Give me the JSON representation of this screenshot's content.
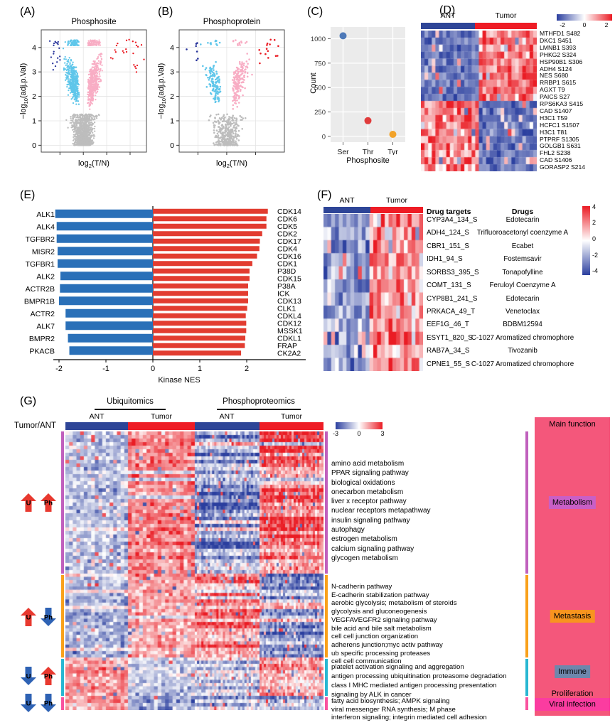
{
  "chart_data": [
    {
      "panel": "A",
      "label": "(A)",
      "type": "scatter",
      "variant": "volcano",
      "title": "Phosphosite",
      "xlabel": {
        "pre": "log",
        "sub": "2",
        "post": "(T/N)"
      },
      "ylabel": {
        "pre": "−log",
        "sub": "10",
        "post": "(adj.p.Val)"
      },
      "x_ticks": [
        -2,
        0,
        2,
        4
      ],
      "y_ticks": [
        0,
        1,
        2,
        3,
        4
      ],
      "xlim": [
        -3.6,
        5.4
      ],
      "ylim": [
        -0.28,
        4.72
      ],
      "sig_threshold_y": 1.3,
      "strong_x": 1.95,
      "n_points": 2300,
      "seed": 7,
      "top_band": 0.17,
      "r": 1.15,
      "colors": {
        "ns": "#bdbdbd",
        "down": "#5fc6ea",
        "up": "#f8adc4",
        "strong_down": "#28349b",
        "strong_up": "#ea1c24"
      }
    },
    {
      "panel": "B",
      "label": "(B)",
      "type": "scatter",
      "variant": "volcano",
      "title": "Phosphoprotein",
      "xlabel": {
        "pre": "log",
        "sub": "2",
        "post": "(T/N)"
      },
      "ylabel": {
        "pre": "−log",
        "sub": "10",
        "post": "(adj.p.Val)"
      },
      "x_ticks": [
        -2,
        0,
        2
      ],
      "y_ticks": [
        0,
        1,
        2,
        3,
        4
      ],
      "xlim": [
        -3.3,
        4.0
      ],
      "ylim": [
        -0.28,
        4.72
      ],
      "sig_threshold_y": 1.3,
      "strong_x": 1.95,
      "n_points": 700,
      "seed": 13,
      "top_band": 0.07,
      "r": 1.3,
      "colors": {
        "ns": "#bdbdbd",
        "down": "#5fc6ea",
        "up": "#f8adc4",
        "strong_down": "#28349b",
        "strong_up": "#ea1c24"
      }
    },
    {
      "panel": "C",
      "label": "(C)",
      "type": "scatter",
      "categories": [
        "Ser",
        "Thr",
        "Tyr"
      ],
      "values": [
        1030,
        160,
        20
      ],
      "point_colors": [
        "#4e79b8",
        "#e03b3b",
        "#f2a32a"
      ],
      "xlabel": "Phosphosite",
      "ylabel": "Count",
      "y_ticks": [
        0,
        250,
        500,
        750,
        1000
      ],
      "ylim": [
        -60,
        1120
      ],
      "panel_bg": "#ebebeb"
    },
    {
      "panel": "D",
      "label": "(D)",
      "type": "heatmap",
      "col_groups": [
        {
          "label": "ANT",
          "color": "#2e4597"
        },
        {
          "label": "Tumor",
          "color": "#ee1c25"
        }
      ],
      "rows": 20,
      "cols": 32,
      "ant_cols": 16,
      "seed": 21,
      "row_labels": [
        "MTHFD1 S482",
        "DKC1 S451",
        "LMNB1 S393",
        "PHKG2 S324",
        "HSP90B1 S306",
        "ADH4 S124",
        "NES S680",
        "RRBP1 S615",
        "AGXT T9",
        "PAICS S27",
        "RPS6KA3 S415",
        "CAD S1407",
        "H3C1 T59",
        "HCFC1 S1507",
        "H3C1 T81",
        "PTPRF S1305",
        "GOLGB1 S631",
        "FHL2 S238",
        "CAD S1406",
        "GORASP2 S214"
      ],
      "colorbar_ticks": [
        -2,
        0,
        2
      ],
      "cmap": {
        "low": "#2b3f9f",
        "mid": "#ffffff",
        "high": "#ea1c24"
      }
    },
    {
      "panel": "E",
      "label": "(E)",
      "type": "bar",
      "variant": "horizontal-diverging",
      "xlabel": "Kinase NES",
      "x_ticks": [
        -2,
        -1,
        0,
        1,
        2
      ],
      "left_color": "#2a70b8",
      "right_color": "#e23c30",
      "left": [
        {
          "name": "ALK1",
          "value": -2.08
        },
        {
          "name": "ALK4",
          "value": -2.05
        },
        {
          "name": "TGFBR2",
          "value": -2.05
        },
        {
          "name": "MISR2",
          "value": -2.03
        },
        {
          "name": "TGFBR1",
          "value": -2.03
        },
        {
          "name": "ALK2",
          "value": -1.97
        },
        {
          "name": "ACTR2B",
          "value": -1.98
        },
        {
          "name": "BMPR1B",
          "value": -2.0
        },
        {
          "name": "ACTR2",
          "value": -1.86
        },
        {
          "name": "ALK7",
          "value": -1.86
        },
        {
          "name": "BMPR2",
          "value": -1.81
        },
        {
          "name": "PKACB",
          "value": -1.78
        }
      ],
      "right": [
        {
          "name": "CDK14",
          "value": 2.45
        },
        {
          "name": "CDK6",
          "value": 2.42
        },
        {
          "name": "CDK5",
          "value": 2.42
        },
        {
          "name": "CDK2",
          "value": 2.33
        },
        {
          "name": "CDK17",
          "value": 2.28
        },
        {
          "name": "CDK4",
          "value": 2.27
        },
        {
          "name": "CDK16",
          "value": 2.22
        },
        {
          "name": "CDK1",
          "value": 2.12
        },
        {
          "name": "P38D",
          "value": 2.06
        },
        {
          "name": "CDK15",
          "value": 2.06
        },
        {
          "name": "P38A",
          "value": 2.03
        },
        {
          "name": "ICK",
          "value": 2.03
        },
        {
          "name": "CDK13",
          "value": 2.03
        },
        {
          "name": "CLK1",
          "value": 2.01
        },
        {
          "name": "CDKL4",
          "value": 1.98
        },
        {
          "name": "CDK12",
          "value": 1.99
        },
        {
          "name": "MSSK1",
          "value": 1.99
        },
        {
          "name": "CDKL1",
          "value": 1.97
        },
        {
          "name": "FRAP",
          "value": 1.96
        },
        {
          "name": "CK2A2",
          "value": 1.88
        }
      ]
    },
    {
      "panel": "F",
      "label": "(F)",
      "type": "heatmap",
      "col_groups": [
        {
          "label": "ANT",
          "color": "#2e4597"
        },
        {
          "label": "Tumor",
          "color": "#ee1c25"
        }
      ],
      "headers": {
        "targets": "Drug targets",
        "drugs": "Drugs"
      },
      "rows": [
        {
          "target": "CYP3A4_134_S",
          "drug": "Edotecarin"
        },
        {
          "target": "ADH4_124_S",
          "drug": "Trifluoroacetonyl coenzyme A"
        },
        {
          "target": "CBR1_151_S",
          "drug": "Ecabet"
        },
        {
          "target": "IDH1_94_S",
          "drug": "Fostemsavir"
        },
        {
          "target": "SORBS3_395_S",
          "drug": "Tonapofylline"
        },
        {
          "target": "COMT_131_S",
          "drug": "Feruloyl Coenzyme A"
        },
        {
          "target": "CYP8B1_241_S",
          "drug": "Edotecarin"
        },
        {
          "target": "PRKACA_49_T",
          "drug": "Venetoclax"
        },
        {
          "target": "EEF1G_46_T",
          "drug": "BDBM12594"
        },
        {
          "target": "ESYT1_820_S",
          "drug": "C-1027 Aromatized chromophore"
        },
        {
          "target": "RAB7A_34_S",
          "drug": "Tivozanib"
        },
        {
          "target": "CPNE1_55_S",
          "drug": "C-1027 Aromatized chromophore"
        }
      ],
      "cols": 26,
      "ant_cols": 12,
      "seed": 35,
      "colorbar_ticks": [
        4,
        2,
        0,
        -2,
        -4
      ],
      "cmap": {
        "low": "#2b3f9f",
        "mid": "#ffffff",
        "high": "#ea1c24"
      }
    },
    {
      "panel": "G",
      "label": "(G)",
      "type": "heatmap",
      "row_ratio_label": "Tumor/ANT",
      "omics": [
        "Ubiquitomics",
        "Phosphoproteomics"
      ],
      "conditions": [
        "ANT",
        "Tumor",
        "ANT",
        "Tumor"
      ],
      "anno_colors": [
        "#2e4597",
        "#ee1c25",
        "#2e4597",
        "#ee1c25"
      ],
      "colorbar_ticks": [
        -3,
        0,
        3
      ],
      "cmap": {
        "low": "#2b3f9f",
        "mid": "#ffffff",
        "high": "#ea1c24"
      },
      "arrow_colors": {
        "up": "#e8392f",
        "down": "#2e62b4"
      },
      "seed": 49,
      "col_blocks": [
        {
          "omics": "Ubiquitomics",
          "condition": "ANT",
          "cols": 17,
          "kind": "ub"
        },
        {
          "omics": "Ubiquitomics",
          "condition": "Tumor",
          "cols": 18,
          "kind": "ub"
        },
        {
          "omics": "Phosphoproteomics",
          "condition": "ANT",
          "cols": 30,
          "kind": "ph"
        },
        {
          "omics": "Phosphoproteomics",
          "condition": "Tumor",
          "cols": 30,
          "kind": "ph"
        }
      ],
      "groups": [
        {
          "name": "Metabolism",
          "sidebar_color": "#c060bd",
          "rows": 40,
          "bias": [
            -0.3,
            0.55,
            -0.55,
            0.55
          ],
          "arrows": [
            {
              "label": "U",
              "dir": "up"
            },
            {
              "label": "Ph",
              "dir": "up"
            }
          ],
          "pathways": [
            "amino acid metabolism",
            "PPAR signaling pathway",
            "biological oxidations",
            "onecarbon metabolism",
            "liver x receptor pathway",
            "nuclear receptors metapathway",
            "insulin signaling pathway",
            "autophagy",
            "estrogen metabolism",
            "calcium signaling pathway",
            "glycogen metabolism"
          ]
        },
        {
          "name": "Metastasis",
          "sidebar_color": "#f9a11b",
          "rows": 26,
          "bias": [
            -0.4,
            0.4,
            0.48,
            -0.52
          ],
          "arrows": [
            {
              "label": "U",
              "dir": "up"
            },
            {
              "label": "Ph",
              "dir": "down"
            }
          ],
          "pathways": [
            "N-cadherin pathway",
            "E-cadherin stabilization pathway",
            "aerobic glycolysis; metabolism of steroids",
            "glycolysis and gluconeogenesis",
            "VEGFAVEGFR2 signaling pathway",
            "bile acid and bile salt metabolism",
            "cell cell junction organization",
            "adherens junction;myc activ pathway",
            "ub specific processing proteases",
            "cell cell communication"
          ]
        },
        {
          "name": "Immune",
          "sidebar_color": "#28b7d2",
          "rows": 12,
          "bias": [
            0.5,
            -0.25,
            -0.3,
            0.35
          ],
          "arrows": [
            {
              "label": "U",
              "dir": "down"
            },
            {
              "label": "Ph",
              "dir": "up"
            }
          ],
          "pathways": [
            "platelet activation signaling and aggregation",
            "antigen processing ubiquitination proteasome degradation",
            "class I MHC mediated antigen processing presentation",
            "signaling by ALK in cancer"
          ]
        },
        {
          "name": "Proliferation / Viral infection",
          "sidebar_color": "#f9539f",
          "rows": 4,
          "bias": [
            0.45,
            -0.4,
            -0.35,
            -0.4
          ],
          "arrows": [
            {
              "label": "U",
              "dir": "down"
            },
            {
              "label": "Ph",
              "dir": "down"
            }
          ],
          "pathways": [
            "fatty acid biosynthesis; AMPK signaling",
            "viral messenger RNA synthesis; M phase",
            "interferon signaling; integrin mediated cell adhesion"
          ]
        }
      ],
      "main_function": {
        "title": "Main function",
        "bg": "#f4577b",
        "entries": [
          {
            "text": "Metabolism",
            "bg": "#c95fc6"
          },
          {
            "text": "Metastasis",
            "bg": "#f8941f"
          },
          {
            "text": "Immune",
            "bg": "#6e87ac"
          },
          {
            "text": "Proliferation",
            "bg": ""
          },
          {
            "text": "Viral infection",
            "bg": "#fb3ca0"
          }
        ]
      }
    }
  ]
}
